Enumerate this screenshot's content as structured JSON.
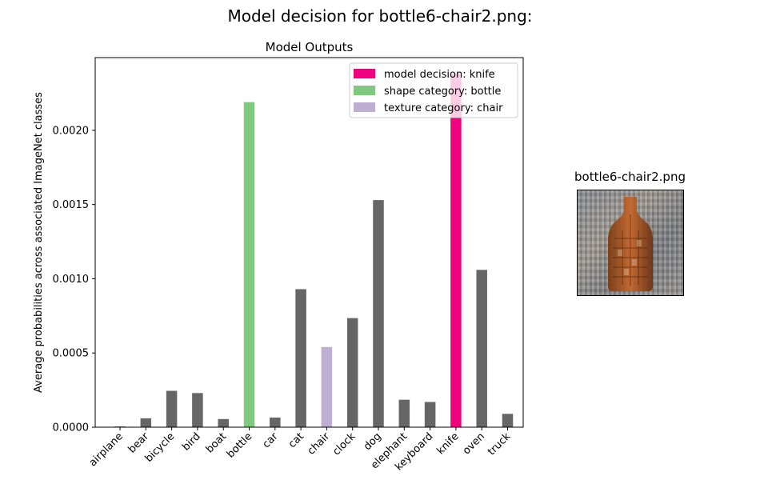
{
  "suptitle": "Model decision for bottle6-chair2.png:",
  "chart_data": {
    "type": "bar",
    "title": "Model Outputs",
    "xlabel": "",
    "ylabel": "Average probabilities across associated ImageNet classes",
    "categories": [
      "airplane",
      "bear",
      "bicycle",
      "bird",
      "boat",
      "bottle",
      "car",
      "cat",
      "chair",
      "clock",
      "dog",
      "elephant",
      "keyboard",
      "knife",
      "oven",
      "truck"
    ],
    "values": [
      5e-06,
      6e-05,
      0.000245,
      0.00023,
      5.5e-05,
      0.00219,
      6.5e-05,
      0.00093,
      0.00054,
      0.000735,
      0.00153,
      0.000185,
      0.00017,
      0.00238,
      0.00106,
      9e-05
    ],
    "bar_colors": [
      "#666666",
      "#666666",
      "#666666",
      "#666666",
      "#666666",
      "#7fc97f",
      "#666666",
      "#666666",
      "#beaed4",
      "#666666",
      "#666666",
      "#666666",
      "#666666",
      "#f0027f",
      "#666666",
      "#666666"
    ],
    "yticks": [
      "0.0000",
      "0.0005",
      "0.0010",
      "0.0015",
      "0.0020"
    ],
    "ylim": [
      0,
      0.00249
    ],
    "grid": false,
    "legend_position": "top-right",
    "legend": [
      {
        "label": "model decision: knife",
        "color": "#f0027f"
      },
      {
        "label": "shape category: bottle",
        "color": "#7fc97f"
      },
      {
        "label": "texture category: chair",
        "color": "#beaed4"
      }
    ]
  },
  "thumbnail": {
    "title": "bottle6-chair2.png"
  }
}
